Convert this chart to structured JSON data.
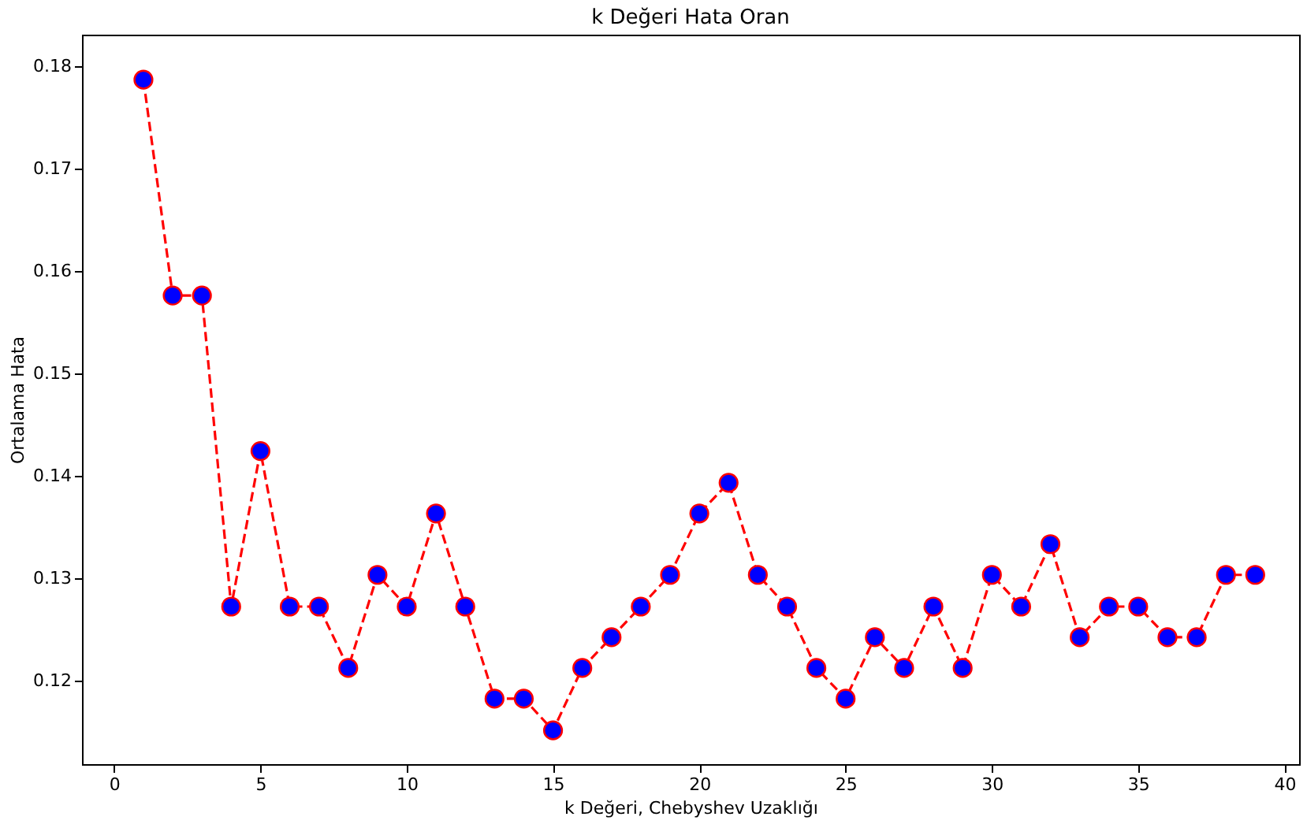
{
  "chart_data": {
    "type": "line",
    "title": "k Değeri Hata Oran",
    "xlabel": "k Değeri, Chebyshev Uzaklığı",
    "ylabel": "Ortalama Hata",
    "x": [
      1,
      2,
      3,
      4,
      5,
      6,
      7,
      8,
      9,
      10,
      11,
      12,
      13,
      14,
      15,
      16,
      17,
      18,
      19,
      20,
      21,
      22,
      23,
      24,
      25,
      26,
      27,
      28,
      29,
      30,
      31,
      32,
      33,
      34,
      35,
      36,
      37,
      38,
      39
    ],
    "series": [
      {
        "color": "#ff0000",
        "values": [
          0.1787,
          0.1576,
          0.1576,
          0.1272,
          0.1424,
          0.1272,
          0.1272,
          0.1212,
          0.1303,
          0.1272,
          0.1363,
          0.1272,
          0.1182,
          0.1182,
          0.1151,
          0.1212,
          0.1242,
          0.1272,
          0.1303,
          0.1363,
          0.1393,
          0.1303,
          0.1272,
          0.1212,
          0.1182,
          0.1242,
          0.1212,
          0.1272,
          0.1212,
          0.1303,
          0.1272,
          0.1333,
          0.1242,
          0.1272,
          0.1272,
          0.1242,
          0.1242,
          0.1303,
          0.1303
        ]
      }
    ],
    "xlim": [
      -1.1,
      40.5
    ],
    "xticks": [
      0,
      5,
      10,
      15,
      20,
      25,
      30,
      35,
      40
    ],
    "ylim": [
      0.1118,
      0.1831
    ],
    "yticks": [
      0.12,
      0.13,
      0.14,
      0.15,
      0.16,
      0.17,
      0.18
    ],
    "marker": "circle",
    "line_style": "dashed",
    "grid": false
  }
}
